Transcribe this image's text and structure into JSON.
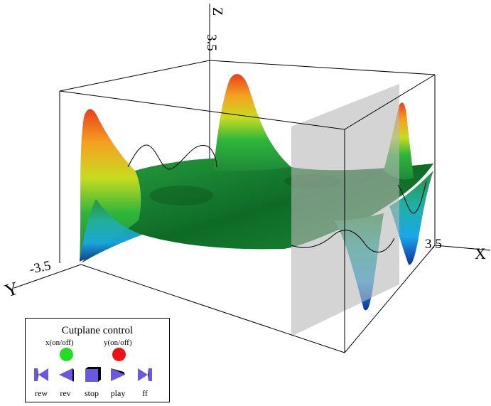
{
  "axes": {
    "z_label": "Z",
    "z_tick": "3.5",
    "y_label": "Y",
    "y_tick": "-3.5",
    "x_label": "X",
    "x_tick": "3.5"
  },
  "cutplane_control": {
    "title": "Cutplane control",
    "x_toggle_label": "x(on/off)",
    "y_toggle_label": "y(on/off)",
    "x_toggle_color": "#22dd22",
    "y_toggle_color": "#ee1111",
    "buttons": {
      "rew": "rew",
      "rev": "rev",
      "stop": "stop",
      "play": "play",
      "ff": "ff"
    },
    "button_color": "#6b58e0"
  }
}
